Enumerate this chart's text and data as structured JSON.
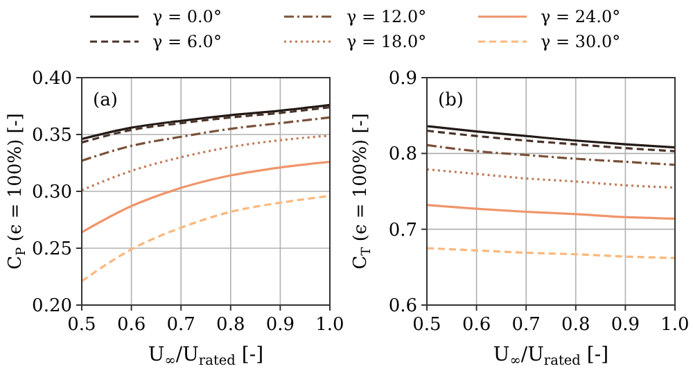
{
  "chart_data": [
    {
      "type": "line",
      "xlabel": "U$_{∞}$/U$_{rated}$ [-]",
      "ylabel": "C$_{P}$ (ϵ = 100%) [-]",
      "annotations": [
        "(a)"
      ],
      "x": [
        0.5,
        0.6,
        0.7,
        0.8,
        0.9,
        1.0
      ],
      "xlim": [
        0.5,
        1.0
      ],
      "xticks": [
        0.5,
        0.6,
        0.7,
        0.8,
        0.9,
        {
          "value": 1,
          "label": "1.0"
        }
      ],
      "ylim": [
        0.2,
        0.4
      ],
      "yticks": [
        {
          "value": 0.2,
          "label": "0.20"
        },
        0.25,
        {
          "value": 0.3,
          "label": "0.30"
        },
        0.35,
        {
          "value": 0.4,
          "label": "0.40"
        }
      ],
      "grid": true,
      "legend": "top",
      "marker": "none",
      "series": [
        {
          "name": "γ = 0.0°",
          "color": "#231a16",
          "line_style": "solid",
          "values": [
            0.346,
            0.356,
            0.362,
            0.367,
            0.371,
            0.376
          ]
        },
        {
          "name": "γ = 6.0°",
          "color": "#4a3328",
          "line_style": "dashed",
          "values": [
            0.343,
            0.354,
            0.36,
            0.365,
            0.369,
            0.374
          ]
        },
        {
          "name": "γ = 12.0°",
          "color": "#7a5138",
          "line_style": "dashdot",
          "values": [
            0.327,
            0.34,
            0.348,
            0.355,
            0.36,
            0.365
          ]
        },
        {
          "name": "γ = 18.0°",
          "color": "#c07a55",
          "line_style": "dotted",
          "values": [
            0.301,
            0.318,
            0.33,
            0.339,
            0.345,
            0.349
          ]
        },
        {
          "name": "γ = 24.0°",
          "color": "#f0956a",
          "line_style": "solid",
          "values": [
            0.264,
            0.287,
            0.303,
            0.314,
            0.321,
            0.326
          ]
        },
        {
          "name": "γ = 30.0°",
          "color": "#fdb77a",
          "line_style": "dashed",
          "values": [
            0.221,
            0.249,
            0.268,
            0.282,
            0.29,
            0.296
          ]
        }
      ]
    },
    {
      "type": "line",
      "xlabel": "U$_{∞}$/U$_{rated}$ [-]",
      "ylabel": "C$_{T}$ (ϵ = 100%) [-]",
      "annotations": [
        "(b)"
      ],
      "x": [
        0.5,
        0.6,
        0.7,
        0.8,
        0.9,
        1.0
      ],
      "xlim": [
        0.5,
        1.0
      ],
      "xticks": [
        0.5,
        0.6,
        0.7,
        0.8,
        0.9,
        {
          "value": 1,
          "label": "1.0"
        }
      ],
      "ylim": [
        0.6,
        0.9
      ],
      "yticks": [
        0.6,
        0.7,
        0.8,
        0.9
      ],
      "grid": true,
      "marker": "none",
      "series": [
        {
          "color": "#231a16",
          "line_style": "solid",
          "values": [
            0.836,
            0.829,
            0.823,
            0.817,
            0.812,
            0.808
          ]
        },
        {
          "color": "#4a3328",
          "line_style": "dashed",
          "values": [
            0.83,
            0.823,
            0.817,
            0.812,
            0.807,
            0.803
          ]
        },
        {
          "color": "#7a5138",
          "line_style": "dashdot",
          "values": [
            0.811,
            0.803,
            0.798,
            0.793,
            0.789,
            0.785
          ]
        },
        {
          "color": "#c07a55",
          "line_style": "dotted",
          "values": [
            0.779,
            0.773,
            0.767,
            0.763,
            0.758,
            0.755
          ]
        },
        {
          "color": "#f0956a",
          "line_style": "solid",
          "values": [
            0.732,
            0.727,
            0.723,
            0.72,
            0.716,
            0.714
          ]
        },
        {
          "color": "#fdb77a",
          "line_style": "dashed",
          "values": [
            0.675,
            0.672,
            0.669,
            0.667,
            0.664,
            0.662
          ]
        }
      ]
    }
  ]
}
